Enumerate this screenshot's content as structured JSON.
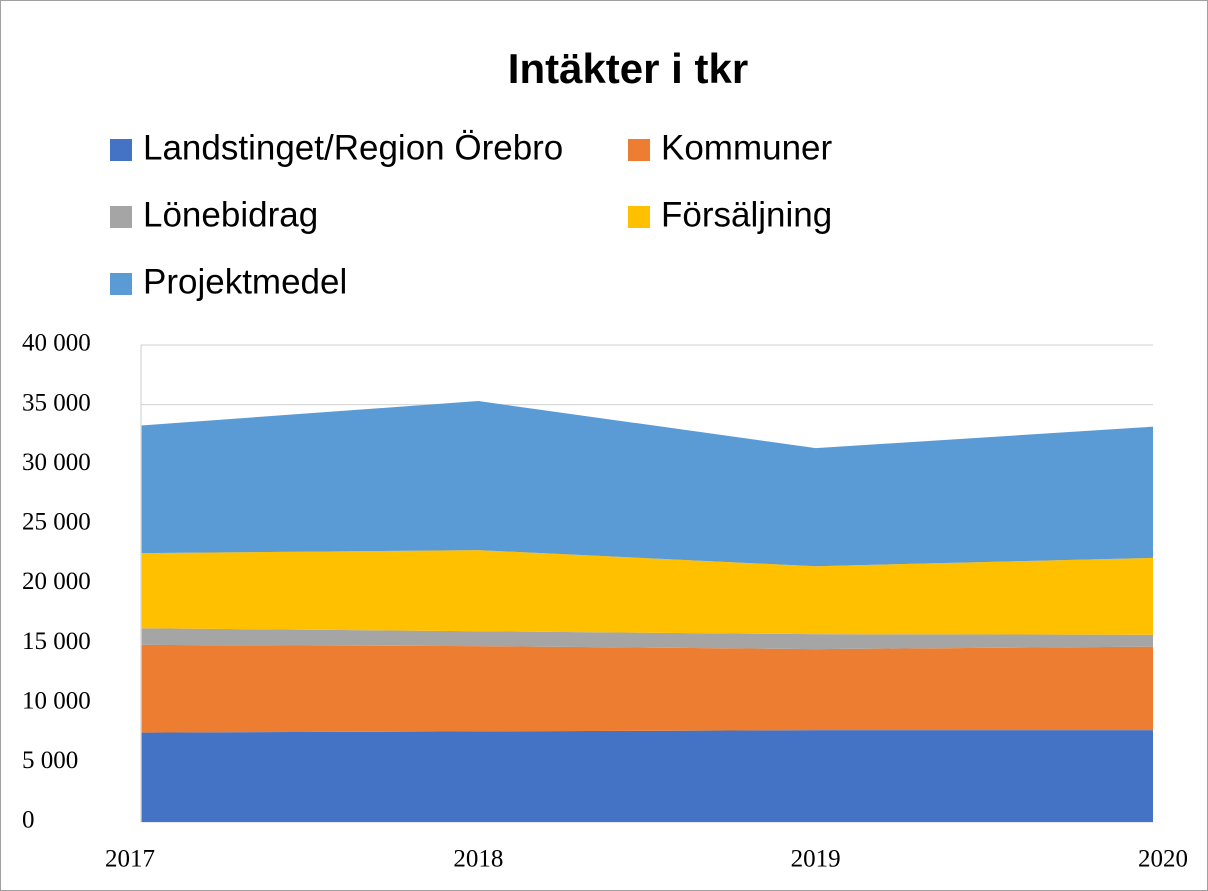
{
  "chart_data": {
    "type": "area",
    "stacked": true,
    "title": "Intäkter i tkr",
    "categories": [
      "2017",
      "2018",
      "2019",
      "2020"
    ],
    "series": [
      {
        "name": "Landstinget/Region Örebro",
        "color": "#4472c4",
        "values": [
          7500,
          7600,
          7700,
          7700
        ]
      },
      {
        "name": "Kommuner",
        "color": "#ed7d31",
        "values": [
          7350,
          7150,
          6800,
          7000
        ]
      },
      {
        "name": "Lönebidrag",
        "color": "#a5a5a5",
        "values": [
          1400,
          1250,
          1250,
          1000
        ]
      },
      {
        "name": "Försäljning",
        "color": "#ffc000",
        "values": [
          6300,
          6800,
          5700,
          6450
        ]
      },
      {
        "name": "Projektmedel",
        "color": "#5b9bd5",
        "values": [
          10700,
          12500,
          9900,
          11000
        ]
      }
    ],
    "ylim": [
      0,
      40000
    ],
    "yticks": [
      0,
      {
        "value": 5000,
        "label": "5 000"
      },
      {
        "value": 10000,
        "label": "10 000"
      },
      {
        "value": 15000,
        "label": "15 000"
      },
      {
        "value": 20000,
        "label": "20 000"
      },
      {
        "value": 25000,
        "label": "25 000"
      },
      {
        "value": 30000,
        "label": "30 000"
      },
      {
        "value": 35000,
        "label": "35 000"
      },
      {
        "value": 40000,
        "label": "40 000"
      }
    ],
    "grid": true,
    "legend": "top"
  }
}
